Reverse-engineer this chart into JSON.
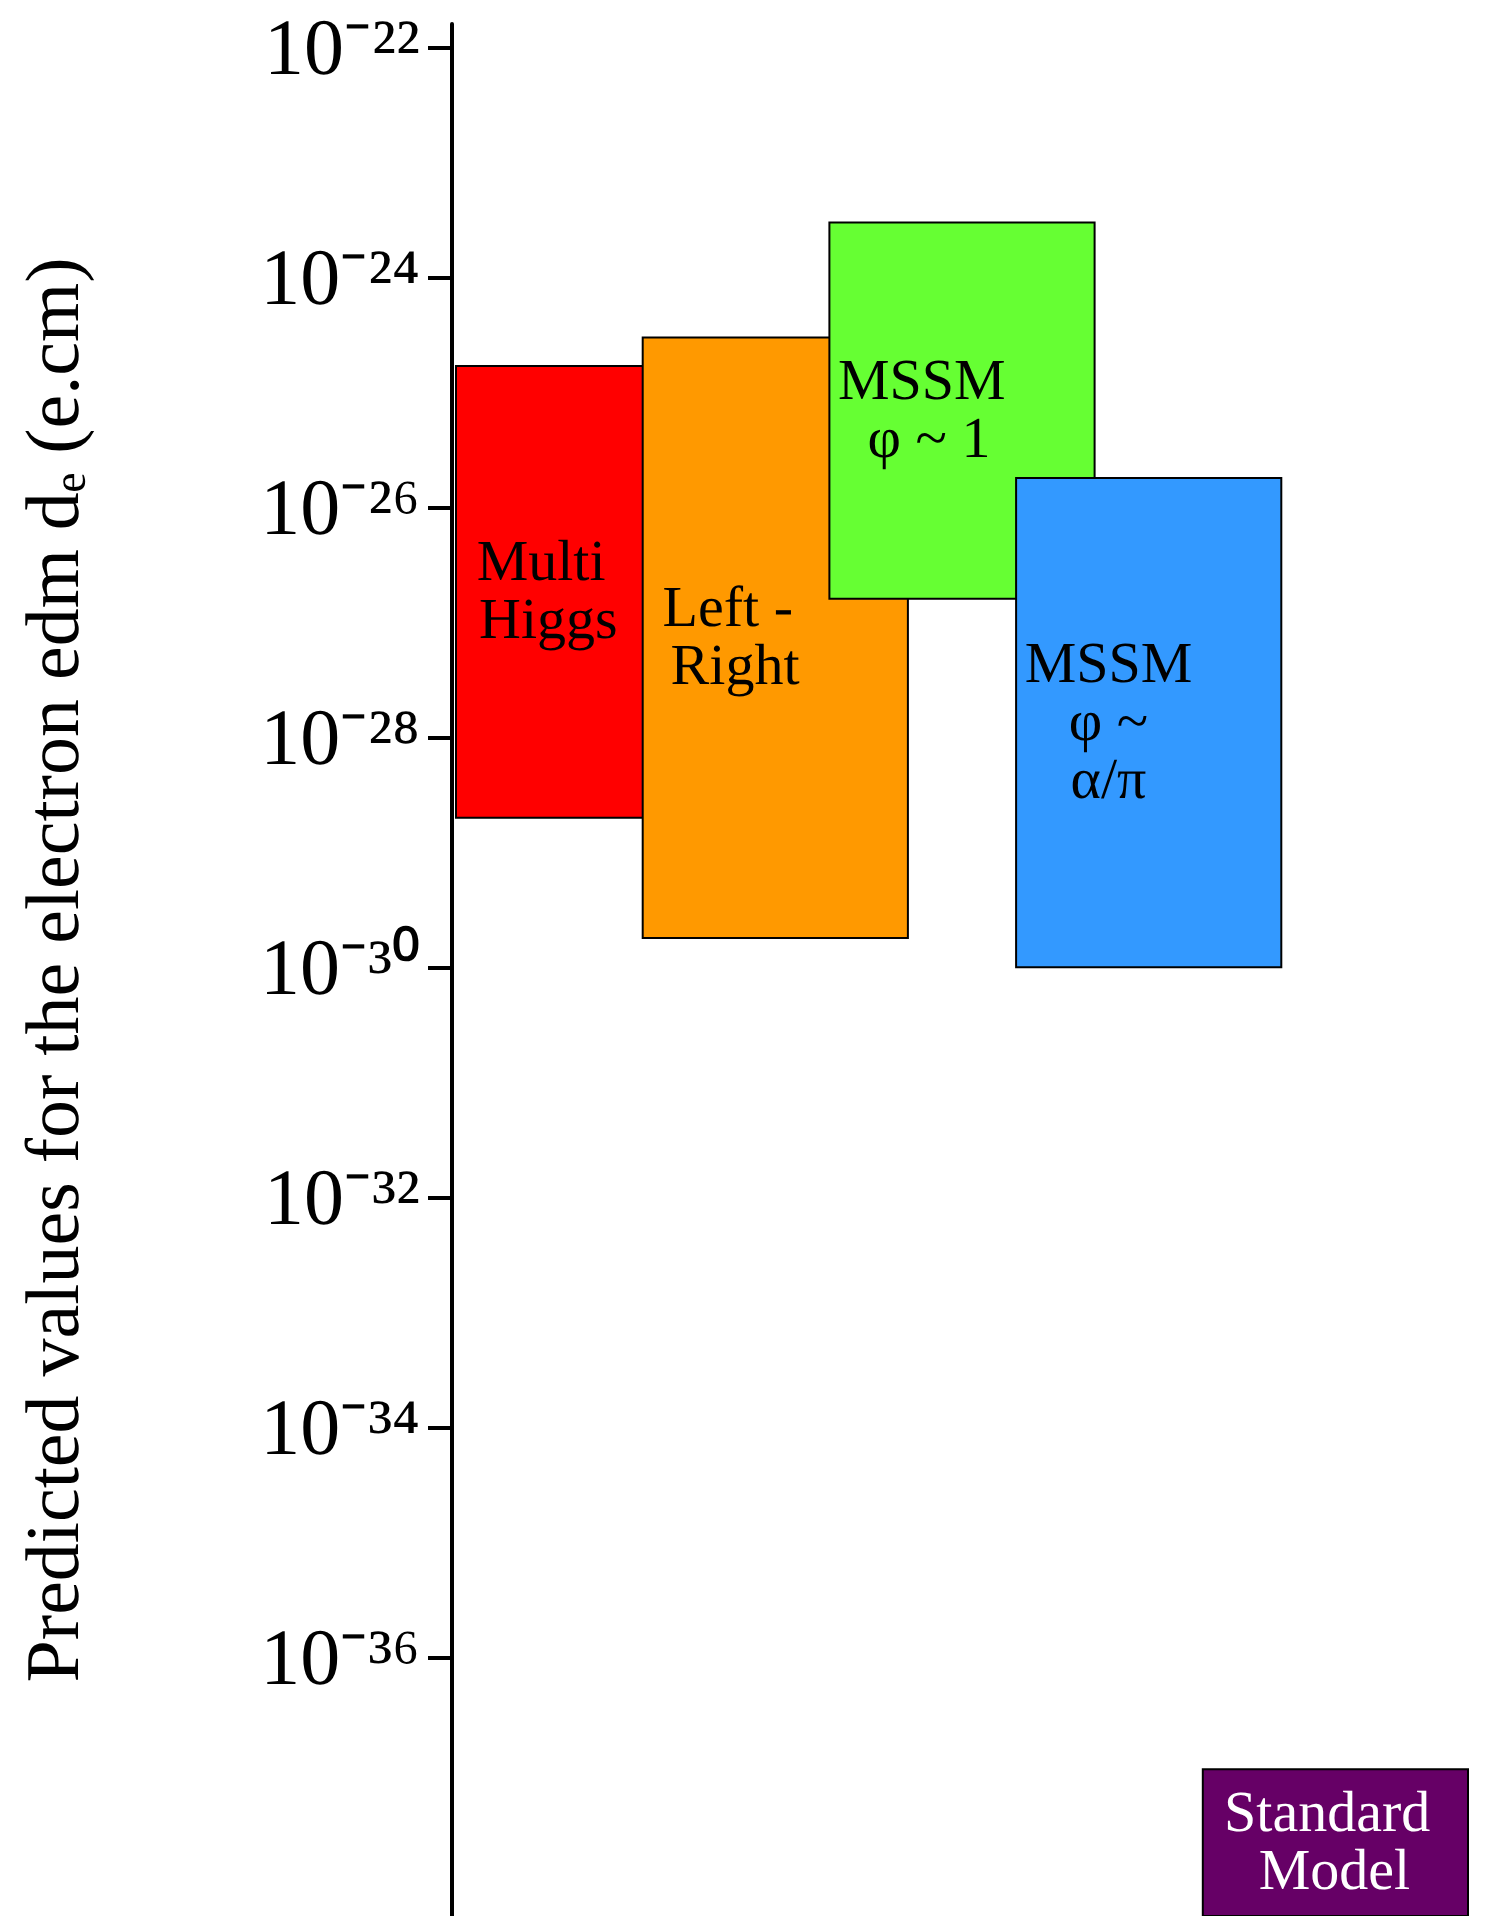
{
  "chart_data": {
    "type": "bar",
    "ylabel": "Predicted values for the electron edm dₑ (e.cm)",
    "categories": [
      "Multi Higgs",
      "Left - Right",
      "MSSM φ ~ 1",
      "MSSM φ ~ α/π",
      "Standard Model"
    ],
    "base": [
      2e-29,
      1.8e-30,
      1.6e-27,
      1e-30,
      5.6e-39
    ],
    "values": [
      1.7e-25,
      3e-25,
      3e-24,
      1.8e-26,
      1e-37
    ],
    "colors": [
      "#ff0000",
      "#ff9900",
      "#66ff33",
      "#3399ff",
      "#660066"
    ],
    "log": true,
    "grid": false,
    "tick_labels": "y",
    "ylim": [
      5.6e-39,
      1.6e-22
    ],
    "yticks": [
      {
        "value": 1e-36,
        "label": "10⁻³⁶"
      },
      {
        "value": 1e-34,
        "label": "10⁻³⁴"
      },
      {
        "value": 1e-32,
        "label": "10⁻³²"
      },
      {
        "value": 1e-30,
        "label": "10⁻³⁰"
      },
      {
        "value": 1e-28,
        "label": "10⁻²⁸"
      },
      {
        "value": 1e-26,
        "label": "10⁻²⁶"
      },
      {
        "value": 1e-24,
        "label": "10⁻²⁴"
      },
      {
        "value": 1e-22,
        "label": "10⁻²²"
      }
    ]
  }
}
